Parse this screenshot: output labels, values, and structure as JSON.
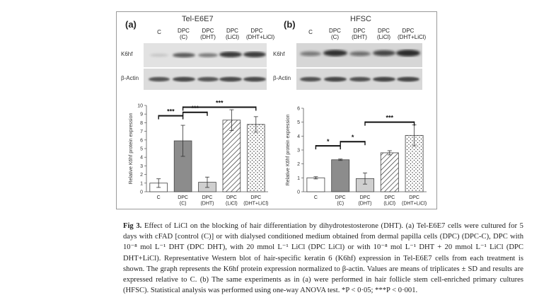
{
  "figure": {
    "panel_a": {
      "label": "(a)",
      "title": "Tel-E6E7",
      "lanes": [
        [
          "C"
        ],
        [
          "DPC",
          "(C)"
        ],
        [
          "DPC",
          "(DHT)"
        ],
        [
          "DPC",
          "(LiCl)"
        ],
        [
          "DPC",
          "(DHT+LiCl)"
        ]
      ],
      "blot_labels": [
        "K6hf",
        "β-Actin"
      ]
    },
    "panel_b": {
      "label": "(b)",
      "title": "HFSC",
      "lanes": [
        [
          "C"
        ],
        [
          "DPC",
          "(C)"
        ],
        [
          "DPC",
          "(DHT)"
        ],
        [
          "DPC",
          "(LiCl)"
        ],
        [
          "DPC",
          "(DHT+LiCl)"
        ]
      ],
      "blot_labels": [
        "K6hf",
        "β-Actin"
      ]
    }
  },
  "chart_data": [
    {
      "type": "bar",
      "panel": "a",
      "categories": [
        [
          "C"
        ],
        [
          "DPC",
          "(C)"
        ],
        [
          "DPC",
          "(DHT)"
        ],
        [
          "DPC",
          "(LiCl)"
        ],
        [
          "DPC",
          "(DHT+LiCl)"
        ]
      ],
      "values": [
        1.0,
        5.9,
        1.1,
        8.3,
        7.8
      ],
      "errors": [
        0.5,
        1.8,
        0.6,
        1.2,
        0.9
      ],
      "fills": [
        "white",
        "darkgray",
        "lightgray",
        "hatch",
        "dots"
      ],
      "ylabel": "Relative K6hf protein expression",
      "xlabel": "",
      "ylim": [
        0,
        10
      ],
      "yticks": [
        0,
        1,
        2,
        3,
        4,
        5,
        6,
        7,
        8,
        9,
        10
      ],
      "significance": [
        {
          "from": 0,
          "to": 1,
          "label": "***",
          "y": 8.8
        },
        {
          "from": 1,
          "to": 2,
          "label": "***",
          "y": 9.2
        },
        {
          "from": 1,
          "to": 4,
          "label": "***",
          "y": 9.8
        }
      ]
    },
    {
      "type": "bar",
      "panel": "b",
      "categories": [
        [
          "C"
        ],
        [
          "DPC",
          "(C)"
        ],
        [
          "DPC",
          "(DHT)"
        ],
        [
          "DPC",
          "(LiCl)"
        ],
        [
          "DPC",
          "(DHT+LiCl)"
        ]
      ],
      "values": [
        1.0,
        2.3,
        0.95,
        2.8,
        4.05
      ],
      "errors": [
        0.08,
        0.05,
        0.4,
        0.15,
        0.75
      ],
      "fills": [
        "white",
        "darkgray",
        "lightgray",
        "hatch",
        "dots"
      ],
      "ylabel": "Relative K6hf protein expression",
      "xlabel": "",
      "ylim": [
        0,
        6
      ],
      "yticks": [
        0,
        1,
        2,
        3,
        4,
        5,
        6
      ],
      "significance": [
        {
          "from": 0,
          "to": 1,
          "label": "*",
          "y": 3.3
        },
        {
          "from": 1,
          "to": 2,
          "label": "*",
          "y": 3.6
        },
        {
          "from": 2,
          "to": 4,
          "label": "***",
          "y": 5.0
        }
      ]
    }
  ],
  "caption": {
    "label": "Fig 3.",
    "text": "Effect of LiCl on the blocking of hair differentiation by dihydrotestosterone (DHT). (a) Tel-E6E7 cells were cultured for 5 days with cFAD [control (C)] or with dialysed conditioned medium obtained from dermal papilla cells (DPC) (DPC-C), DPC with 10⁻⁸ mol L⁻¹ DHT (DPC DHT), with 20 mmol L⁻¹ LiCl (DPC LiCl) or with 10⁻⁸ mol L⁻¹ DHT + 20 mmol L⁻¹ LiCl (DPC DHT+LiCl). Representative Western blot of hair-specific keratin 6 (K6hf) expression in Tel-E6E7 cells from each treatment is shown. The graph represents the K6hf protein expression normalized to β-actin. Values are means of triplicates ± SD and results are expressed relative to C. (b) The same experiments as in (a) were performed in hair follicle stem cell-enriched primary cultures (HFSC). Statistical analysis was performed using one-way ANOVA test. *P < 0·05; ***P < 0·001."
  },
  "colors": {
    "bar_dark": "#8c8c8c",
    "bar_light": "#cfcfcf",
    "axis": "#555555",
    "bracket": "#111111"
  }
}
